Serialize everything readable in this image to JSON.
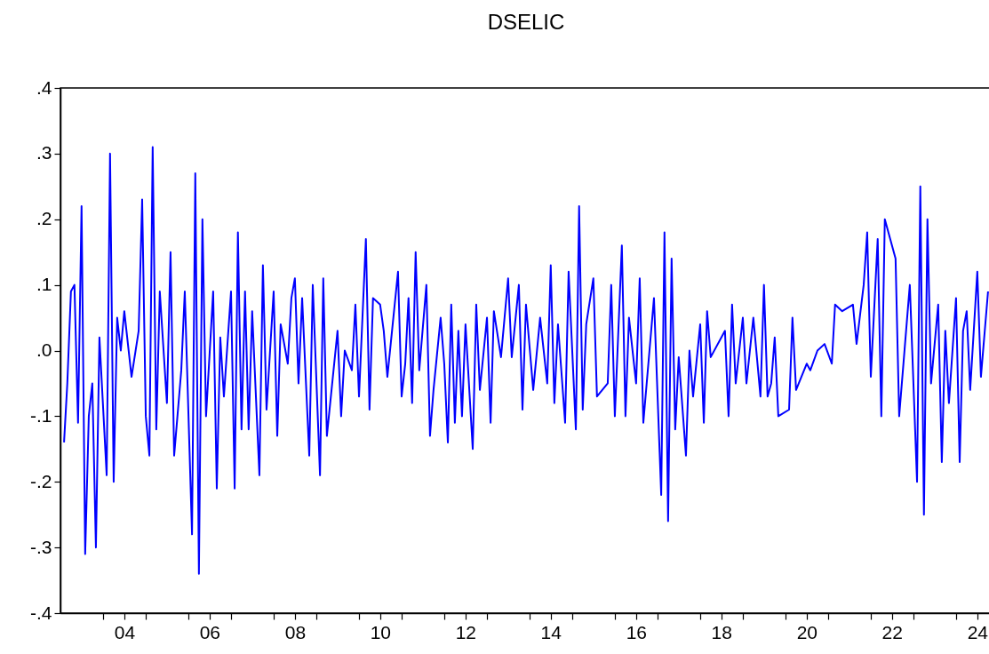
{
  "chart_data": {
    "type": "line",
    "title": "DSELIC",
    "x": [
      "2003-02",
      "2003-03",
      "2003-04",
      "2003-05",
      "2003-06",
      "2003-07",
      "2003-08",
      "2003-09",
      "2003-10",
      "2003-11",
      "2003-12",
      "2004-02",
      "2004-03",
      "2004-04",
      "2004-05",
      "2004-06",
      "2004-07",
      "2004-09",
      "2004-11",
      "2004-12",
      "2005-01",
      "2005-02",
      "2005-03",
      "2005-04",
      "2005-05",
      "2005-07",
      "2005-08",
      "2005-09",
      "2005-11",
      "2005-12",
      "2006-02",
      "2006-03",
      "2006-04",
      "2006-05",
      "2006-06",
      "2006-08",
      "2006-09",
      "2006-10",
      "2006-11",
      "2007-01",
      "2007-02",
      "2007-03",
      "2007-04",
      "2007-05",
      "2007-06",
      "2007-07",
      "2007-09",
      "2007-10",
      "2007-11",
      "2008-01",
      "2008-02",
      "2008-03",
      "2008-05",
      "2008-06",
      "2008-07",
      "2008-08",
      "2008-09",
      "2008-11",
      "2008-12",
      "2009-02",
      "2009-03",
      "2009-04",
      "2009-07",
      "2009-08",
      "2009-09",
      "2009-11",
      "2009-12",
      "2010-01",
      "2010-03",
      "2010-04",
      "2010-05",
      "2010-07",
      "2010-08",
      "2010-09",
      "2010-12",
      "2011-01",
      "2011-02",
      "2011-03",
      "2011-04",
      "2011-05",
      "2011-06",
      "2011-08",
      "2011-09",
      "2011-10",
      "2011-12",
      "2012-01",
      "2012-02",
      "2012-03",
      "2012-04",
      "2012-05",
      "2012-06",
      "2012-07",
      "2012-09",
      "2012-10",
      "2012-11",
      "2013-01",
      "2013-02",
      "2013-03",
      "2013-05",
      "2013-07",
      "2013-08",
      "2013-10",
      "2013-11",
      "2013-12",
      "2014-02",
      "2014-04",
      "2014-06",
      "2014-07",
      "2014-08",
      "2014-09",
      "2014-11",
      "2014-12",
      "2015-02",
      "2015-03",
      "2015-04",
      "2015-05",
      "2015-07",
      "2015-08",
      "2015-11",
      "2015-12",
      "2016-01",
      "2016-03",
      "2016-04",
      "2016-05",
      "2016-07",
      "2016-08",
      "2016-09",
      "2016-12",
      "2017-02",
      "2017-03",
      "2017-04",
      "2017-05",
      "2017-06",
      "2017-07",
      "2017-09",
      "2017-10",
      "2017-11",
      "2018-01",
      "2018-02",
      "2018-03",
      "2018-04",
      "2018-08",
      "2018-09",
      "2018-10",
      "2018-11",
      "2019-01",
      "2019-02",
      "2019-04",
      "2019-06",
      "2019-07",
      "2019-08",
      "2019-09",
      "2019-10",
      "2019-11",
      "2020-02",
      "2020-03",
      "2020-04",
      "2020-07",
      "2020-08",
      "2020-10",
      "2020-12",
      "2021-02",
      "2021-03",
      "2021-05",
      "2021-08",
      "2021-09",
      "2021-11",
      "2021-12",
      "2022-01",
      "2022-03",
      "2022-04",
      "2022-05",
      "2022-08",
      "2022-09",
      "2022-12",
      "2023-02",
      "2023-03",
      "2023-04",
      "2023-05",
      "2023-06",
      "2023-08",
      "2023-09",
      "2023-10",
      "2023-11",
      "2024-01",
      "2024-02",
      "2024-03",
      "2024-04",
      "2024-05",
      "2024-07",
      "2024-08",
      "2024-10"
    ],
    "series": [
      {
        "color": "#0000ff",
        "values": [
          -0.14,
          -0.05,
          0.09,
          0.1,
          -0.11,
          0.22,
          -0.31,
          -0.1,
          -0.05,
          -0.3,
          0.02,
          -0.19,
          0.3,
          -0.2,
          0.05,
          0.0,
          0.06,
          -0.04,
          0.03,
          0.23,
          -0.1,
          -0.16,
          0.31,
          -0.12,
          0.09,
          -0.08,
          0.15,
          -0.16,
          -0.03,
          0.09,
          -0.28,
          0.27,
          -0.34,
          0.2,
          -0.1,
          0.09,
          -0.21,
          0.02,
          -0.07,
          0.09,
          -0.21,
          0.18,
          -0.12,
          0.09,
          -0.12,
          0.06,
          -0.19,
          0.13,
          -0.09,
          0.09,
          -0.13,
          0.04,
          -0.02,
          0.08,
          0.11,
          -0.05,
          0.08,
          -0.16,
          0.1,
          -0.19,
          0.11,
          -0.13,
          0.03,
          -0.1,
          0.0,
          -0.03,
          0.07,
          -0.07,
          0.17,
          -0.09,
          0.08,
          0.07,
          0.03,
          -0.04,
          0.12,
          -0.07,
          -0.02,
          0.08,
          -0.08,
          0.15,
          -0.03,
          0.1,
          -0.13,
          -0.06,
          0.05,
          -0.02,
          -0.14,
          0.07,
          -0.11,
          0.03,
          -0.1,
          0.04,
          -0.15,
          0.07,
          -0.06,
          0.05,
          -0.11,
          0.06,
          -0.01,
          0.11,
          -0.01,
          0.1,
          -0.09,
          0.07,
          -0.06,
          0.05,
          -0.05,
          0.13,
          -0.08,
          0.04,
          -0.11,
          0.12,
          -0.12,
          0.22,
          -0.09,
          0.04,
          0.11,
          -0.07,
          -0.05,
          0.1,
          -0.1,
          0.16,
          -0.1,
          0.05,
          -0.05,
          0.11,
          -0.11,
          0.08,
          -0.22,
          0.18,
          -0.26,
          0.14,
          -0.12,
          -0.01,
          -0.16,
          0.0,
          -0.07,
          0.04,
          -0.11,
          0.06,
          -0.01,
          0.03,
          -0.1,
          0.07,
          -0.05,
          0.05,
          -0.05,
          0.05,
          -0.07,
          0.1,
          -0.07,
          -0.05,
          0.02,
          -0.1,
          -0.09,
          0.05,
          -0.06,
          -0.02,
          -0.03,
          0.0,
          0.01,
          -0.02,
          0.07,
          0.06,
          0.07,
          0.01,
          0.1,
          0.18,
          -0.04,
          0.17,
          -0.1,
          0.2,
          0.14,
          -0.1,
          0.1,
          -0.2,
          0.25,
          -0.25,
          0.2,
          -0.05,
          0.07,
          -0.17,
          0.03,
          -0.08,
          0.08,
          -0.17,
          0.03,
          0.06,
          -0.06,
          0.12,
          -0.04,
          0.09
        ]
      }
    ],
    "xlim": [
      "2003-01",
      "2024-11"
    ],
    "xticks": [
      {
        "value": "2004-01",
        "label": null
      },
      {
        "value": "2004-07",
        "label": "04"
      },
      {
        "value": "2005-01",
        "label": null
      },
      {
        "value": "2006-01",
        "label": null
      },
      {
        "value": "2006-07",
        "label": "06"
      },
      {
        "value": "2007-01",
        "label": null
      },
      {
        "value": "2008-01",
        "label": null
      },
      {
        "value": "2008-07",
        "label": "08"
      },
      {
        "value": "2009-01",
        "label": null
      },
      {
        "value": "2010-01",
        "label": null
      },
      {
        "value": "2010-07",
        "label": "10"
      },
      {
        "value": "2011-01",
        "label": null
      },
      {
        "value": "2012-01",
        "label": null
      },
      {
        "value": "2012-07",
        "label": "12"
      },
      {
        "value": "2013-01",
        "label": null
      },
      {
        "value": "2014-01",
        "label": null
      },
      {
        "value": "2014-07",
        "label": "14"
      },
      {
        "value": "2015-01",
        "label": null
      },
      {
        "value": "2016-01",
        "label": null
      },
      {
        "value": "2016-07",
        "label": "16"
      },
      {
        "value": "2017-01",
        "label": null
      },
      {
        "value": "2018-01",
        "label": null
      },
      {
        "value": "2018-07",
        "label": "18"
      },
      {
        "value": "2019-01",
        "label": null
      },
      {
        "value": "2020-01",
        "label": null
      },
      {
        "value": "2020-07",
        "label": "20"
      },
      {
        "value": "2021-01",
        "label": null
      },
      {
        "value": "2022-01",
        "label": null
      },
      {
        "value": "2022-07",
        "label": "22"
      },
      {
        "value": "2023-01",
        "label": null
      },
      {
        "value": "2024-01",
        "label": null
      },
      {
        "value": "2024-07",
        "label": "24"
      }
    ],
    "ylim": [
      -0.4,
      0.4
    ],
    "yticks": [
      {
        "value": -0.4,
        "label": "-.4"
      },
      {
        "value": -0.3,
        "label": "-.3"
      },
      {
        "value": -0.2,
        "label": "-.2"
      },
      {
        "value": -0.1,
        "label": "-.1"
      },
      {
        "value": 0,
        "label": ".0"
      },
      {
        "value": 0.1,
        "label": ".1"
      },
      {
        "value": 0.2,
        "label": ".2"
      },
      {
        "value": 0.3,
        "label": ".3"
      },
      {
        "value": 0.4,
        "label": ".4"
      }
    ],
    "grid": false,
    "line_style": "solid"
  }
}
